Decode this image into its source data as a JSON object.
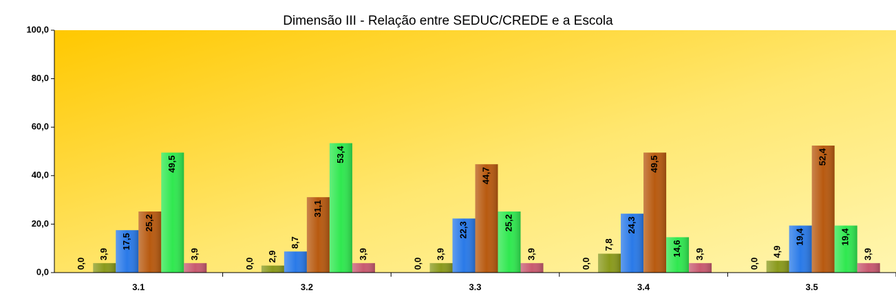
{
  "chart_data": {
    "type": "bar",
    "title": "Dimensão III - Relação entre SEDUC/CREDE e a Escola",
    "categories": [
      "3.1",
      "3.2",
      "3.3",
      "3.4",
      "3.5"
    ],
    "series": [
      {
        "color": "#7a8a10",
        "values": [
          0,
          0,
          0,
          0,
          0
        ],
        "value_labels": [
          "0,0",
          "0,0",
          "0,0",
          "0,0",
          "0,0"
        ]
      },
      {
        "color": "#8a9a1c",
        "values": [
          3.9,
          2.9,
          3.9,
          7.8,
          4.9
        ],
        "value_labels": [
          "3,9",
          "2,9",
          "3,9",
          "7,8",
          "4,9"
        ]
      },
      {
        "color": "#2a7ae8",
        "values": [
          17.5,
          8.7,
          22.3,
          24.3,
          19.4
        ],
        "value_labels": [
          "17,5",
          "8,7",
          "22,3",
          "24,3",
          "19,4"
        ]
      },
      {
        "color": "#b85a10",
        "values": [
          25.2,
          31.1,
          44.7,
          49.5,
          52.4
        ],
        "value_labels": [
          "25,2",
          "31,1",
          "44,7",
          "49,5",
          "52,4"
        ]
      },
      {
        "color": "#30e850",
        "values": [
          49.5,
          53.4,
          25.2,
          14.6,
          19.4
        ],
        "value_labels": [
          "49,5",
          "53,4",
          "25,2",
          "14,6",
          "19,4"
        ]
      },
      {
        "color": "#c85a70",
        "values": [
          3.9,
          3.9,
          3.9,
          3.9,
          3.9
        ],
        "value_labels": [
          "3,9",
          "3,9",
          "3,9",
          "3,9",
          "3,9"
        ]
      }
    ],
    "ylim": [
      0,
      100
    ],
    "yticks": [
      {
        "value": 0,
        "label": "0,0"
      },
      {
        "value": 20,
        "label": "20,0"
      },
      {
        "value": 40,
        "label": "40,0"
      },
      {
        "value": 60,
        "label": "60,0"
      },
      {
        "value": 80,
        "label": "80,0"
      },
      {
        "value": 100,
        "label": "100,0"
      }
    ]
  }
}
